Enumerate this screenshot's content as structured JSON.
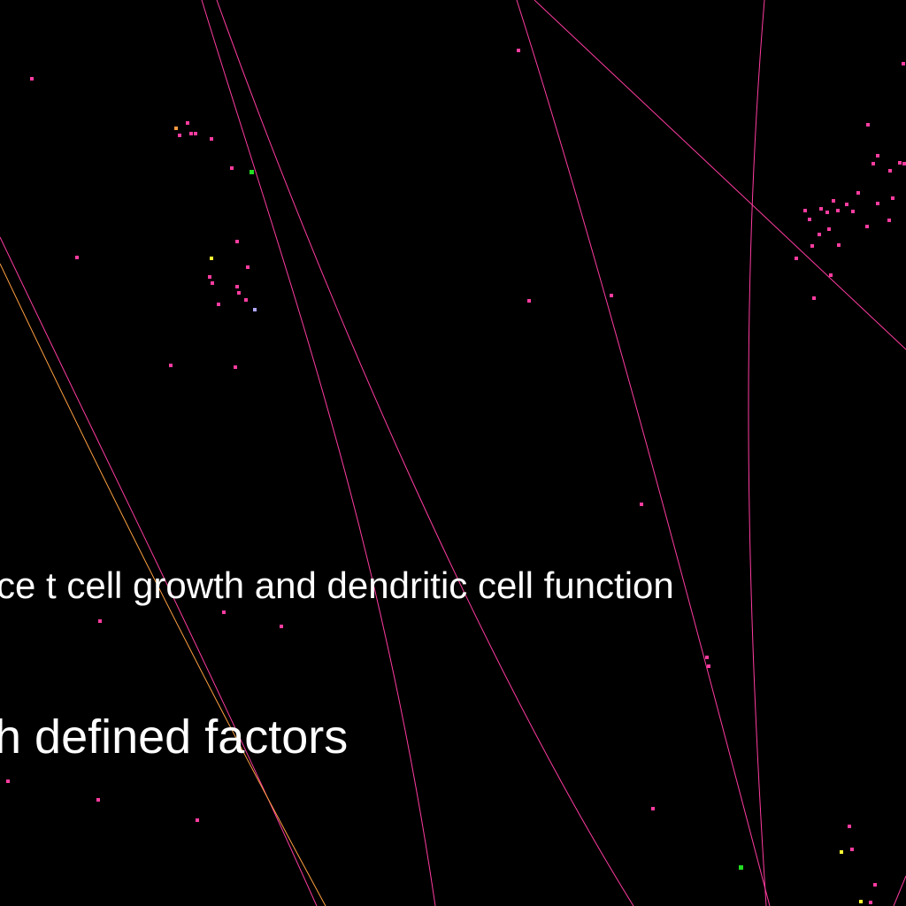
{
  "background": "#000000",
  "colors": {
    "edge_pink": "#ff3ca0",
    "edge_orange": "#ffa040",
    "node_pink": "#ff3ca0",
    "node_green": "#22dd22",
    "node_yellow": "#ffff33",
    "node_lavender": "#b0a8ff",
    "node_orange": "#ff9a40",
    "text": "#ffffff"
  },
  "labels": [
    {
      "id": "label-1",
      "text": "ce t cell growth and dendritic cell function"
    },
    {
      "id": "label-2",
      "text": "h defined factors"
    }
  ]
}
